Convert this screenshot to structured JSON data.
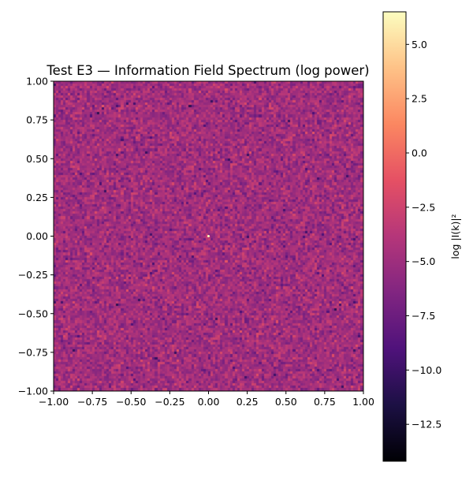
{
  "chart_data": {
    "type": "heatmap",
    "title": "Test E3 — Information Field Spectrum (log power)",
    "xlabel": "",
    "ylabel": "",
    "xlim": [
      -1.0,
      1.0
    ],
    "ylim": [
      -1.0,
      1.0
    ],
    "x_ticks": [
      "−1.00",
      "−0.75",
      "−0.50",
      "−0.25",
      "0.00",
      "0.25",
      "0.50",
      "0.75",
      "1.00"
    ],
    "y_ticks": [
      "1.00",
      "0.75",
      "0.50",
      "0.25",
      "0.00",
      "−0.25",
      "−0.50",
      "−0.75",
      "−1.00"
    ],
    "colormap": "magma",
    "grid": false,
    "field": {
      "resolution": 128,
      "typical_value": -4.8,
      "spread": 1.7,
      "min": -14.2,
      "max": 6.5,
      "peak": {
        "x": 0.0,
        "y": 0.0,
        "value": 6.5
      }
    },
    "colorbar": {
      "label": "log |I(k)|²",
      "range": [
        -14.2,
        6.5
      ],
      "ticks": [
        "5.0",
        "2.5",
        "0.0",
        "−2.5",
        "−5.0",
        "−7.5",
        "−10.0",
        "−12.5"
      ],
      "colormap_stops": [
        "#000004",
        "#1c1044",
        "#4f127b",
        "#812581",
        "#b5367a",
        "#e55064",
        "#fb8761",
        "#fec287",
        "#fcfdbf"
      ]
    }
  }
}
